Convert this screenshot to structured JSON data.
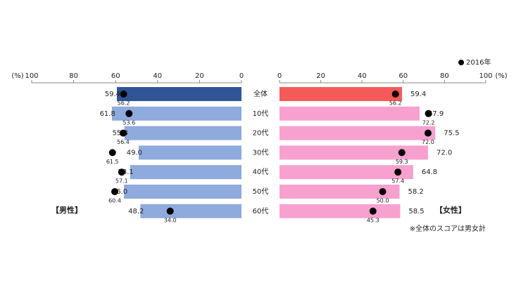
{
  "chart_data": [
    {
      "type": "bar",
      "orientation": "horizontal",
      "title": "【男性】",
      "x_label": "(%)",
      "categories": [
        "全体",
        "10代",
        "20代",
        "30代",
        "40代",
        "50代",
        "60代"
      ],
      "xlim": [
        100,
        0
      ],
      "xticks": [
        100,
        80,
        60,
        40,
        20,
        0
      ],
      "series": [
        {
          "colors": [
            "#2f5597",
            "#8faadc",
            "#8faadc",
            "#8faadc",
            "#8faadc",
            "#8faadc",
            "#8faadc"
          ],
          "values": [
            59.4,
            61.8,
            55.8,
            49.0,
            53.1,
            56.0,
            48.2
          ],
          "value_labels": [
            "59.4",
            "61.8",
            "55.8",
            "49.0",
            "53.1",
            "56.0",
            "48.2"
          ]
        },
        {
          "name": "2016年",
          "color": "#000000",
          "values": [
            56.2,
            53.6,
            56.4,
            61.5,
            57.1,
            60.4,
            34.0
          ],
          "value_labels": [
            "56.2",
            "53.6",
            "56.4",
            "61.5",
            "57.1",
            "60.4",
            "34.0"
          ]
        }
      ]
    },
    {
      "type": "bar",
      "orientation": "horizontal",
      "title": "【女性】",
      "x_label": "(%)",
      "xlim": [
        0,
        100
      ],
      "xticks": [
        0,
        20,
        40,
        60,
        80,
        100
      ],
      "series": [
        {
          "colors": [
            "#f55a5a",
            "#f7a1cf",
            "#f7a1cf",
            "#f7a1cf",
            "#f7a1cf",
            "#f7a1cf",
            "#f7a1cf"
          ],
          "values": [
            59.4,
            67.9,
            75.5,
            72.0,
            64.8,
            58.2,
            58.5
          ],
          "value_labels": [
            "59.4",
            "67.9",
            "75.5",
            "72.0",
            "64.8",
            "58.2",
            "58.5"
          ]
        },
        {
          "name": "2016年",
          "color": "#000000",
          "values": [
            56.2,
            72.2,
            72.0,
            59.3,
            57.4,
            50.0,
            45.3
          ],
          "value_labels": [
            "56.2",
            "72.2",
            "72.0",
            "59.3",
            "57.4",
            "50.0",
            "45.3"
          ]
        }
      ],
      "note": "※全体のスコアは男女計"
    }
  ]
}
